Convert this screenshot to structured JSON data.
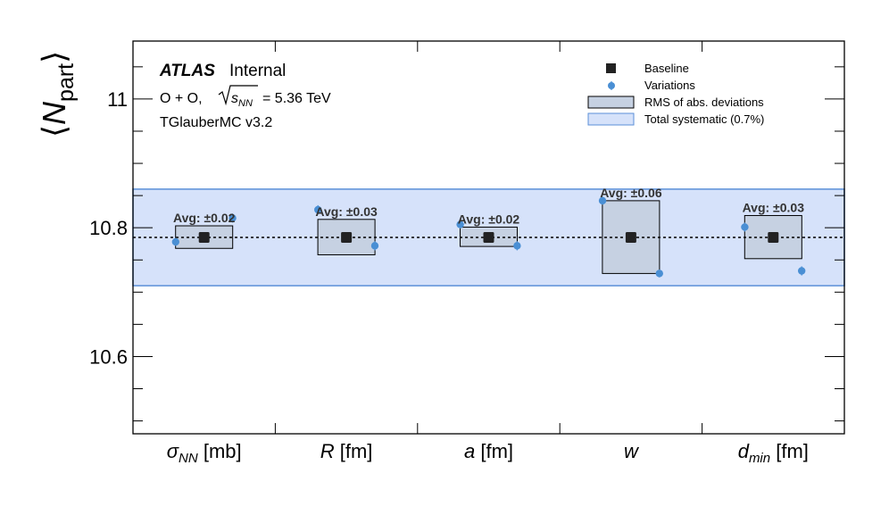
{
  "chart_data": {
    "type": "scatter",
    "ylabel_base": "N",
    "ylabel_sub": "part",
    "ylim": [
      10.48,
      11.09
    ],
    "yticks_major": [
      10.6,
      10.8,
      11
    ],
    "ytick_labels": [
      "10.6",
      "10.8",
      "11"
    ],
    "categories": [
      {
        "main": "σ",
        "sub": "NN",
        "unit": "[mb]"
      },
      {
        "main": "R",
        "sub": "",
        "unit": "[fm]"
      },
      {
        "main": "a",
        "sub": "",
        "unit": "[fm]"
      },
      {
        "main": "w",
        "sub": "",
        "unit": ""
      },
      {
        "main": "d",
        "sub": "min",
        "unit": "[fm]"
      }
    ],
    "baseline": 10.785,
    "total_systematic_band": [
      10.71,
      10.86
    ],
    "rms_boxes": [
      {
        "low": 10.768,
        "high": 10.803
      },
      {
        "low": 10.758,
        "high": 10.813
      },
      {
        "low": 10.771,
        "high": 10.801
      },
      {
        "low": 10.729,
        "high": 10.842
      },
      {
        "low": 10.752,
        "high": 10.819
      }
    ],
    "variations": [
      [
        {
          "offset": -0.2,
          "y": 10.778,
          "err": 0.006
        },
        {
          "offset": 0.2,
          "y": 10.815,
          "err": 0.007
        }
      ],
      [
        {
          "offset": -0.2,
          "y": 10.828,
          "err": 0.007
        },
        {
          "offset": 0.2,
          "y": 10.772,
          "err": 0.007
        }
      ],
      [
        {
          "offset": -0.2,
          "y": 10.805,
          "err": 0.006
        },
        {
          "offset": 0.2,
          "y": 10.772,
          "err": 0.007
        }
      ],
      [
        {
          "offset": -0.2,
          "y": 10.842,
          "err": 0.006
        },
        {
          "offset": 0.2,
          "y": 10.729,
          "err": 0.006
        }
      ],
      [
        {
          "offset": -0.2,
          "y": 10.801,
          "err": 0.007
        },
        {
          "offset": 0.2,
          "y": 10.733,
          "err": 0.007
        }
      ]
    ],
    "avg_labels": [
      "Avg: ±0.02",
      "Avg: ±0.03",
      "Avg: ±0.02",
      "Avg: ±0.06",
      "Avg: ±0.03"
    ],
    "legend": [
      "Baseline",
      "Variations",
      "RMS of abs. deviations",
      "Total systematic (0.7%)"
    ],
    "legend_placement": "top-right",
    "colors": {
      "baseline": "#222222",
      "variation": "#4a8fd4",
      "band_fill": "#d6e2fa",
      "band_edge": "#5b8fd8",
      "rms_fill": "#c6d1e2"
    }
  },
  "annotations": {
    "atlas": "ATLAS",
    "internal": "Internal",
    "system_prefix": "O + O,",
    "sqrt_sub": "NN",
    "energy": "= 5.36 TeV",
    "generator": "TGlauberMC v3.2"
  }
}
